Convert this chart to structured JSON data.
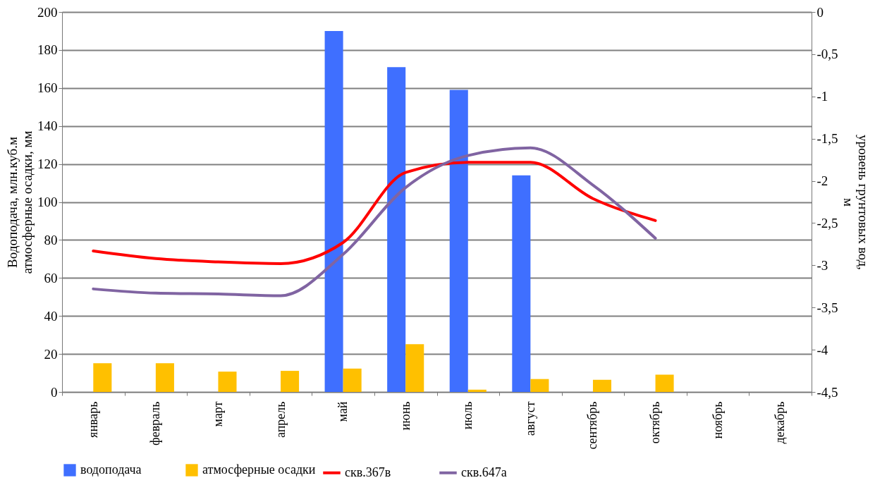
{
  "chart_data": {
    "type": "bar",
    "categories": [
      "январь",
      "февраль",
      "март",
      "апрель",
      "май",
      "июнь",
      "июль",
      "август",
      "сентябрь",
      "октябрь",
      "ноябрь",
      "декабрь"
    ],
    "ylabel": "Водоподача, млн.куб.м\nатмосферные осадки, мм",
    "y2label": "уровень грунтовых вод,\nм",
    "ylim": [
      0,
      200
    ],
    "yticks": [
      0,
      20,
      40,
      60,
      80,
      100,
      120,
      140,
      160,
      180,
      200
    ],
    "y2lim": [
      -4.5,
      0
    ],
    "y2ticks": [
      0,
      {
        "value": -0.5,
        "label": "-0,5"
      },
      -1,
      {
        "value": -1.5,
        "label": "-1,5"
      },
      -2,
      {
        "value": -2.5,
        "label": "-2,5"
      },
      -3,
      {
        "value": -3.5,
        "label": "-3,5"
      },
      -4,
      {
        "value": -4.5,
        "label": "-4,5"
      }
    ],
    "grid": "y",
    "legend": "bottom",
    "series": [
      {
        "name": "водоподача",
        "color": "#3f6fff",
        "values": [
          null,
          null,
          null,
          null,
          190,
          171,
          159,
          114,
          null,
          null,
          null,
          null
        ]
      },
      {
        "name": "атмосферные осадки",
        "color": "#ffc000",
        "values": [
          15.1,
          15.1,
          10.7,
          11.1,
          12.3,
          25.1,
          1.2,
          6.8,
          6.4,
          9.1,
          null,
          null
        ]
      },
      {
        "name": "скв.367в",
        "type": "line",
        "axis": "y2",
        "line_style": "solid",
        "color": "#ff0000",
        "values": [
          -2.83,
          -2.92,
          -2.96,
          -2.98,
          -2.73,
          -1.9,
          -1.78,
          -1.78,
          -2.21,
          -2.47,
          null,
          null
        ]
      },
      {
        "name": "скв.647а",
        "type": "line",
        "axis": "y2",
        "line_style": "solid",
        "color": "#8064a2",
        "values": [
          -3.28,
          -3.33,
          -3.34,
          -3.36,
          -2.87,
          -2.08,
          -1.7,
          -1.61,
          -2.05,
          -2.68,
          null,
          null
        ]
      }
    ]
  }
}
